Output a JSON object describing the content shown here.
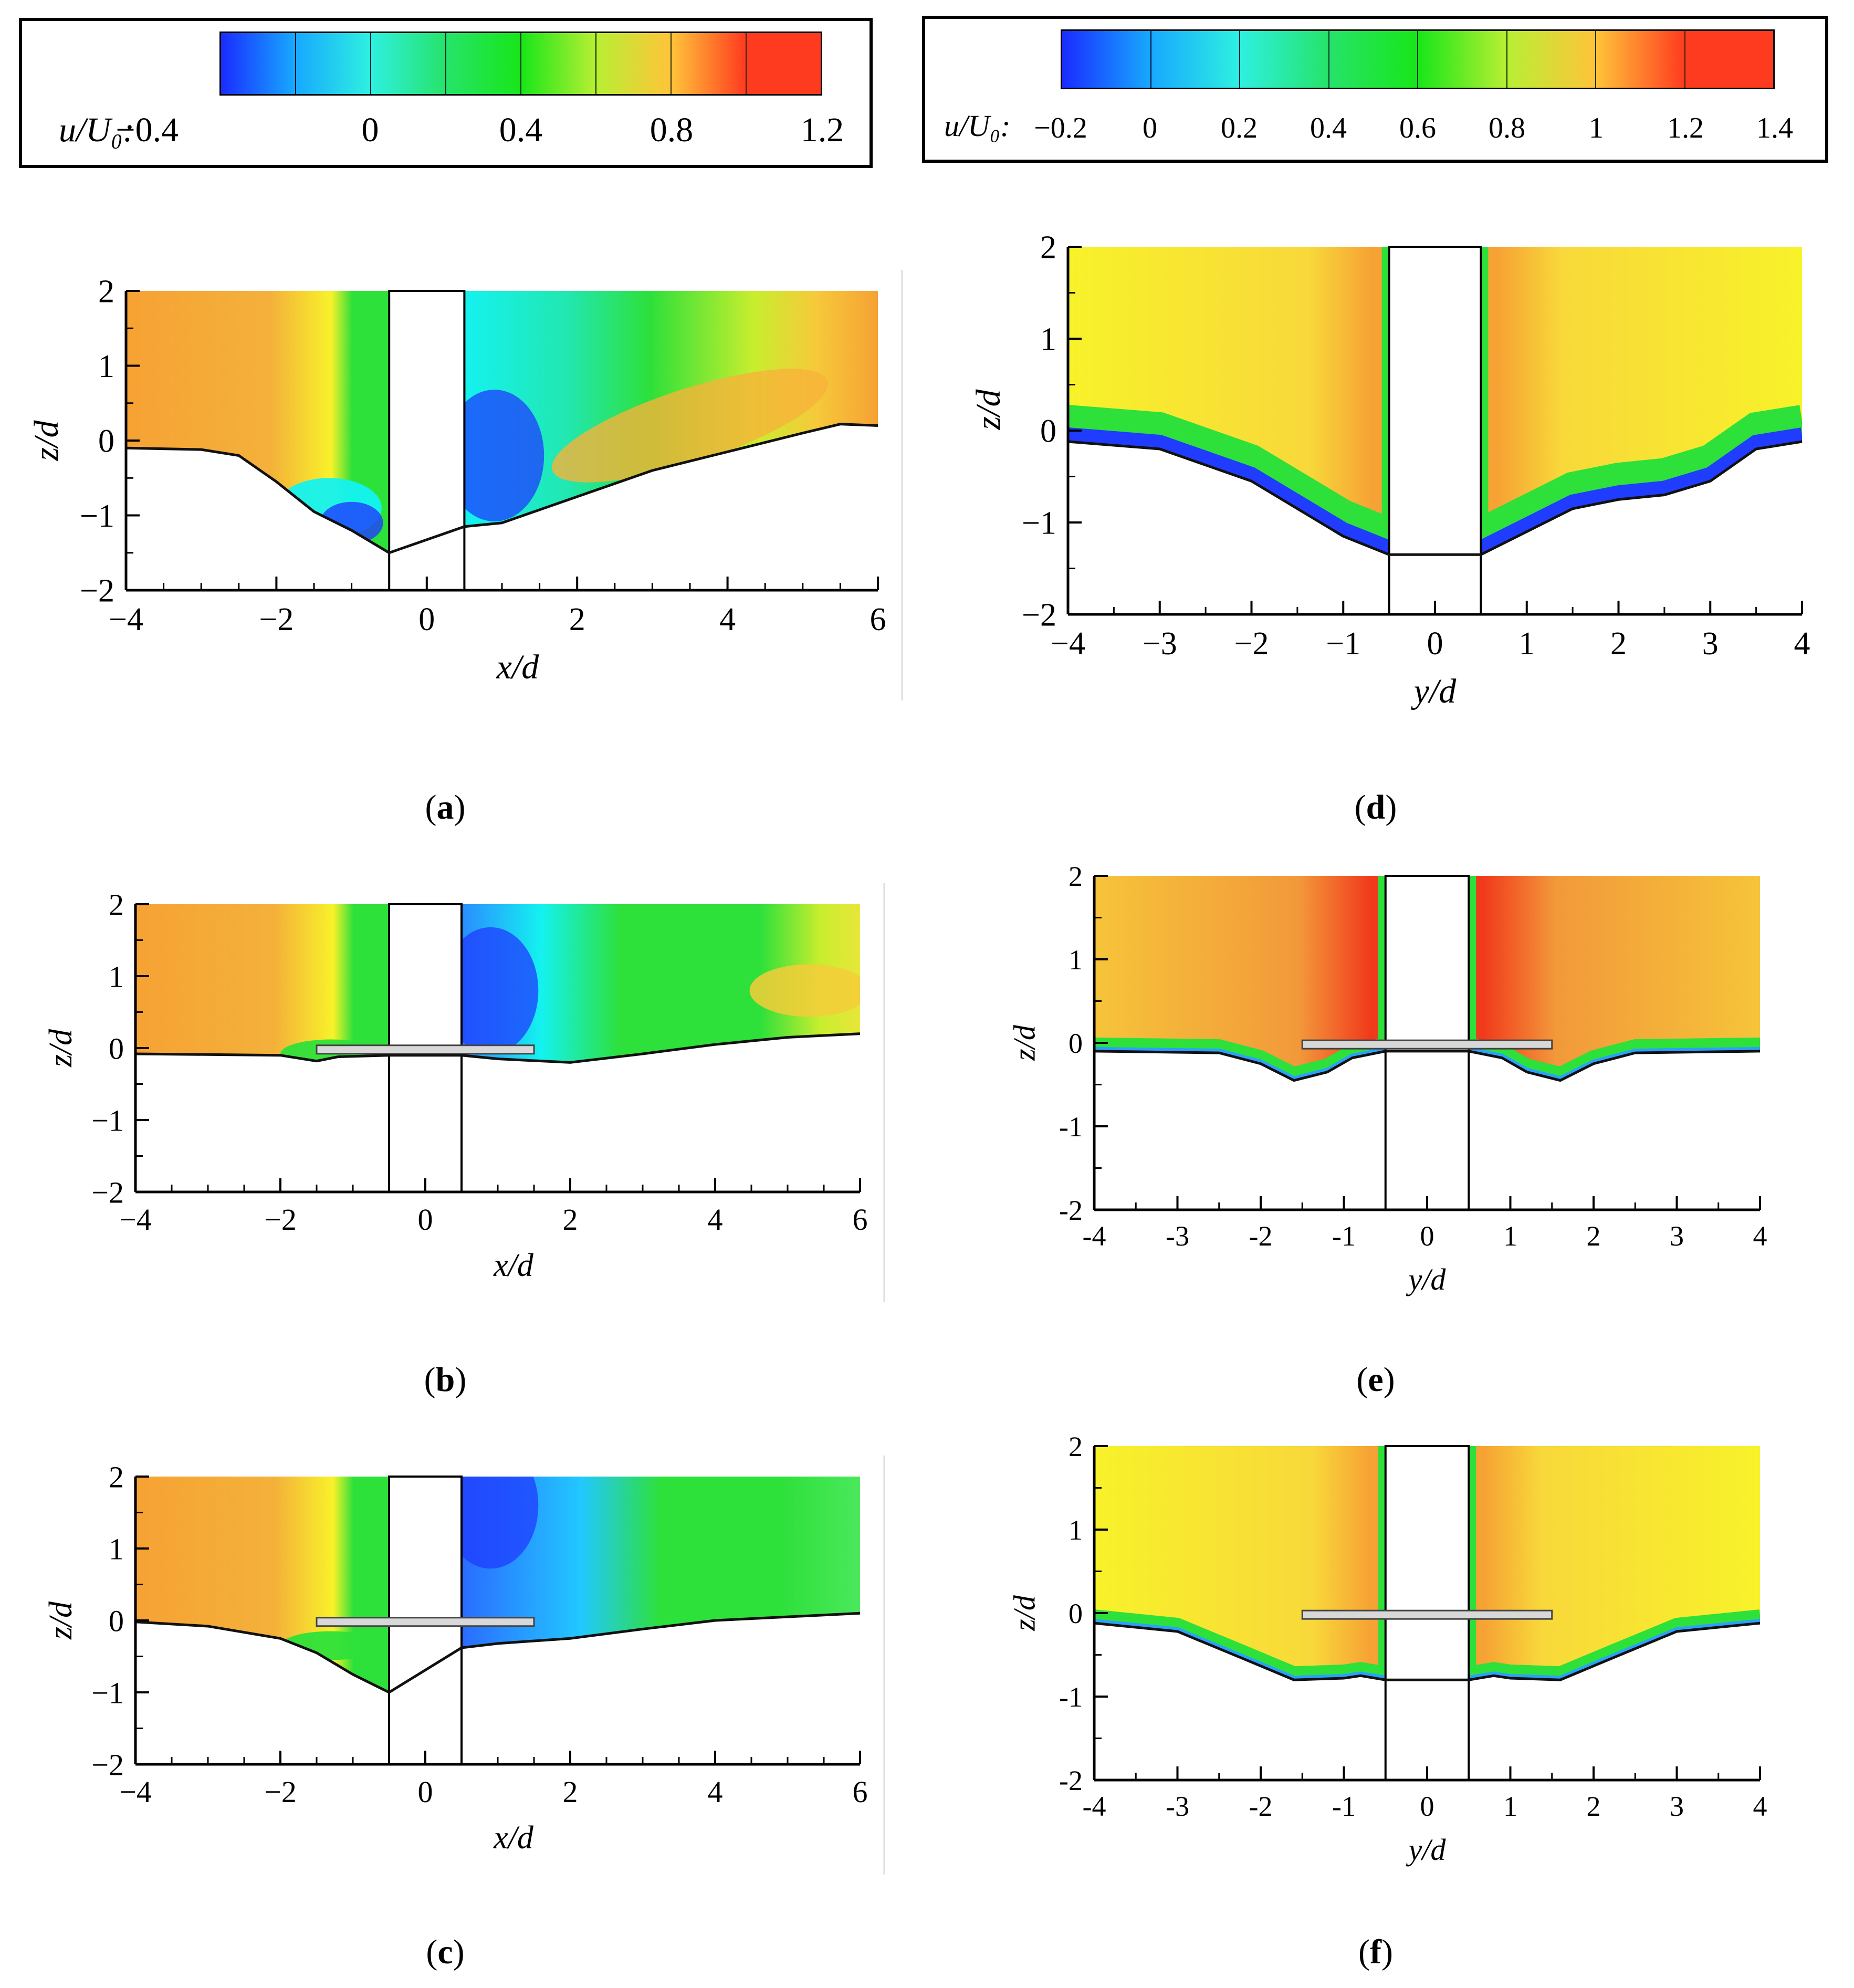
{
  "legends": [
    {
      "variable_label": "u/U₀:",
      "ticks": [
        "−0.4",
        "0",
        "0.4",
        "0.8",
        "1.2"
      ],
      "colors": [
        "#1a2cff",
        "#17a9ff",
        "#2ef0e0",
        "#26e36a",
        "#18e619",
        "#b8ef33",
        "#ffc43a",
        "#ff3b1f"
      ]
    },
    {
      "variable_label": "u/U₀:",
      "ticks": [
        "−0.2",
        "0",
        "0.2",
        "0.4",
        "0.6",
        "0.8",
        "1",
        "1.2",
        "1.4"
      ],
      "colors": [
        "#1a2cff",
        "#17a9ff",
        "#2ef0e0",
        "#26e36a",
        "#18e619",
        "#b8ef33",
        "#ffc43a",
        "#ff3b1f"
      ]
    }
  ],
  "colors": {
    "blue": "#1f3cff",
    "cyan": "#14f2f0",
    "green": "#2ee03a",
    "yellowgreen": "#c8ee2e",
    "yellow": "#f8f22a",
    "orange": "#f6a234",
    "red": "#f13a1c"
  },
  "chart_data": [
    {
      "panel": "(a)",
      "caption_letter": "a",
      "type": "heatmap",
      "xlabel": "x/d",
      "ylabel": "z/d",
      "xlim": [
        -4,
        6
      ],
      "ylim": [
        -2,
        2
      ],
      "xticks": [
        "−4",
        "−2",
        "0",
        "2",
        "4",
        "6"
      ],
      "yticks": [
        "−2",
        "−1",
        "0",
        "1",
        "2"
      ],
      "xtick_values": [
        -4,
        -2,
        0,
        2,
        4,
        6
      ],
      "ytick_values": [
        -2,
        -1,
        0,
        1,
        2
      ],
      "pier": [
        -0.5,
        0.5
      ],
      "collar": null,
      "bed_profile": [
        [
          -4,
          -0.1
        ],
        [
          -3,
          -0.12
        ],
        [
          -2.5,
          -0.2
        ],
        [
          -2,
          -0.55
        ],
        [
          -1.5,
          -0.95
        ],
        [
          -1,
          -1.2
        ],
        [
          -0.5,
          -1.5
        ],
        [
          0.5,
          -1.15
        ],
        [
          1,
          -1.1
        ],
        [
          2,
          -0.75
        ],
        [
          3,
          -0.4
        ],
        [
          4,
          -0.15
        ],
        [
          5,
          0.1
        ],
        [
          5.5,
          0.22
        ],
        [
          6,
          0.2
        ]
      ]
    },
    {
      "panel": "(b)",
      "caption_letter": "b",
      "type": "heatmap",
      "xlabel": "x/d",
      "ylabel": "z/d",
      "xlim": [
        -4,
        6
      ],
      "ylim": [
        -2,
        2
      ],
      "xticks": [
        "−4",
        "−2",
        "0",
        "2",
        "4",
        "6"
      ],
      "yticks": [
        "−2",
        "−1",
        "0",
        "1",
        "2"
      ],
      "xtick_values": [
        -4,
        -2,
        0,
        2,
        4,
        6
      ],
      "ytick_values": [
        -2,
        -1,
        0,
        1,
        2
      ],
      "pier": [
        -0.5,
        0.5
      ],
      "collar": [
        -1.5,
        1.5
      ],
      "bed_profile": [
        [
          -4,
          -0.08
        ],
        [
          -2,
          -0.1
        ],
        [
          -1.5,
          -0.18
        ],
        [
          -1.2,
          -0.12
        ],
        [
          -0.5,
          -0.1
        ],
        [
          0.5,
          -0.1
        ],
        [
          1,
          -0.15
        ],
        [
          2,
          -0.2
        ],
        [
          3,
          -0.08
        ],
        [
          4,
          0.05
        ],
        [
          5,
          0.15
        ],
        [
          6,
          0.2
        ]
      ]
    },
    {
      "panel": "(c)",
      "caption_letter": "c",
      "type": "heatmap",
      "xlabel": "x/d",
      "ylabel": "z/d",
      "xlim": [
        -4,
        6
      ],
      "ylim": [
        -2,
        2
      ],
      "xticks": [
        "−4",
        "−2",
        "0",
        "2",
        "4",
        "6"
      ],
      "yticks": [
        "−2",
        "−1",
        "0",
        "1",
        "2"
      ],
      "xtick_values": [
        -4,
        -2,
        0,
        2,
        4,
        6
      ],
      "ytick_values": [
        -2,
        -1,
        0,
        1,
        2
      ],
      "pier": [
        -0.5,
        0.5
      ],
      "collar": [
        -1.5,
        1.5
      ],
      "bed_profile": [
        [
          -4,
          -0.02
        ],
        [
          -3,
          -0.08
        ],
        [
          -2,
          -0.25
        ],
        [
          -1.5,
          -0.45
        ],
        [
          -1,
          -0.75
        ],
        [
          -0.5,
          -1.0
        ],
        [
          0.5,
          -0.38
        ],
        [
          1,
          -0.32
        ],
        [
          2,
          -0.25
        ],
        [
          3,
          -0.12
        ],
        [
          4,
          0.0
        ],
        [
          5,
          0.05
        ],
        [
          6,
          0.1
        ]
      ]
    },
    {
      "panel": "(d)",
      "caption_letter": "d",
      "type": "heatmap",
      "xlabel": "y/d",
      "ylabel": "z/d",
      "xlim": [
        -4,
        4
      ],
      "ylim": [
        -2,
        2
      ],
      "xticks": [
        "−4",
        "−3",
        "−2",
        "−1",
        "0",
        "1",
        "2",
        "3",
        "4"
      ],
      "yticks": [
        "−2",
        "−1",
        "0",
        "1",
        "2"
      ],
      "xtick_values": [
        -4,
        -3,
        -2,
        -1,
        0,
        1,
        2,
        3,
        4
      ],
      "ytick_values": [
        -2,
        -1,
        0,
        1,
        2
      ],
      "pier": [
        -0.5,
        0.5
      ],
      "collar": null,
      "bed_profile": [
        [
          -4,
          -0.12
        ],
        [
          -3,
          -0.2
        ],
        [
          -2,
          -0.55
        ],
        [
          -1.5,
          -0.85
        ],
        [
          -1,
          -1.15
        ],
        [
          -0.5,
          -1.35
        ],
        [
          0.5,
          -1.35
        ],
        [
          1,
          -1.1
        ],
        [
          1.5,
          -0.85
        ],
        [
          2,
          -0.75
        ],
        [
          2.5,
          -0.7
        ],
        [
          3,
          -0.55
        ],
        [
          3.5,
          -0.2
        ],
        [
          4,
          -0.12
        ]
      ]
    },
    {
      "panel": "(e)",
      "caption_letter": "e",
      "type": "heatmap",
      "xlabel": "y/d",
      "ylabel": "z/d",
      "xlim": [
        -4,
        4
      ],
      "ylim": [
        -2,
        2
      ],
      "xticks": [
        "-4",
        "-3",
        "-2",
        "-1",
        "0",
        "1",
        "2",
        "3",
        "4"
      ],
      "yticks": [
        "-2",
        "-1",
        "0",
        "1",
        "2"
      ],
      "xtick_values": [
        -4,
        -3,
        -2,
        -1,
        0,
        1,
        2,
        3,
        4
      ],
      "ytick_values": [
        -2,
        -1,
        0,
        1,
        2
      ],
      "pier": [
        -0.5,
        0.5
      ],
      "collar": [
        -1.5,
        1.5
      ],
      "bed_profile": [
        [
          -4,
          -0.1
        ],
        [
          -2.5,
          -0.12
        ],
        [
          -2,
          -0.25
        ],
        [
          -1.6,
          -0.45
        ],
        [
          -1.2,
          -0.35
        ],
        [
          -0.9,
          -0.18
        ],
        [
          -0.5,
          -0.1
        ],
        [
          0.5,
          -0.1
        ],
        [
          0.9,
          -0.18
        ],
        [
          1.2,
          -0.35
        ],
        [
          1.6,
          -0.45
        ],
        [
          2,
          -0.25
        ],
        [
          2.5,
          -0.12
        ],
        [
          4,
          -0.1
        ]
      ]
    },
    {
      "panel": "(f)",
      "caption_letter": "f",
      "type": "heatmap",
      "xlabel": "y/d",
      "ylabel": "z/d",
      "xlim": [
        -4,
        4
      ],
      "ylim": [
        -2,
        2
      ],
      "xticks": [
        "-4",
        "-3",
        "-2",
        "-1",
        "0",
        "1",
        "2",
        "3",
        "4"
      ],
      "yticks": [
        "-2",
        "-1",
        "0",
        "1",
        "2"
      ],
      "xtick_values": [
        -4,
        -3,
        -2,
        -1,
        0,
        1,
        2,
        3,
        4
      ],
      "ytick_values": [
        -2,
        -1,
        0,
        1,
        2
      ],
      "pier": [
        -0.5,
        0.5
      ],
      "collar": [
        -1.5,
        1.5
      ],
      "bed_profile": [
        [
          -4,
          -0.12
        ],
        [
          -3,
          -0.22
        ],
        [
          -2.2,
          -0.55
        ],
        [
          -1.6,
          -0.8
        ],
        [
          -1,
          -0.78
        ],
        [
          -0.8,
          -0.75
        ],
        [
          -0.5,
          -0.8
        ],
        [
          0.5,
          -0.8
        ],
        [
          0.8,
          -0.75
        ],
        [
          1,
          -0.78
        ],
        [
          1.6,
          -0.8
        ],
        [
          2.2,
          -0.55
        ],
        [
          3,
          -0.22
        ],
        [
          4,
          -0.12
        ]
      ]
    }
  ]
}
